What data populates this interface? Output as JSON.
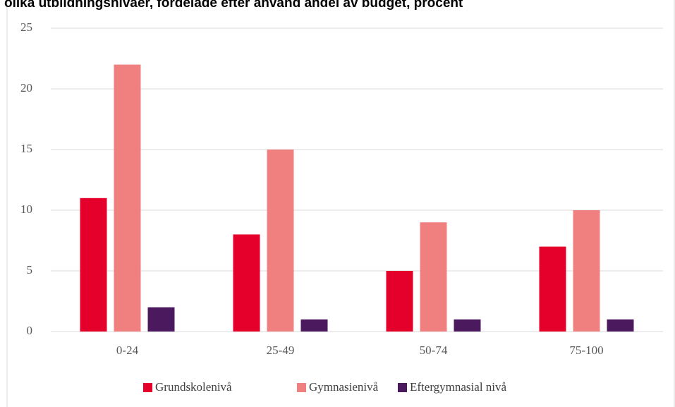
{
  "chart_data": {
    "type": "bar",
    "title": "olika utbildningsnivåer, fördelade efter använd andel av budget, procent",
    "categories": [
      "0-24",
      "25-49",
      "50-74",
      "75-100"
    ],
    "series": [
      {
        "name": "Grundskolenivå",
        "color": "#e4002b",
        "values": [
          11,
          8,
          5,
          7
        ]
      },
      {
        "name": "Gymnasienivå",
        "color": "#f08080",
        "values": [
          22,
          15,
          9,
          10
        ]
      },
      {
        "name": "Eftergymnasial nivå",
        "color": "#4b1a5e",
        "values": [
          2,
          1,
          1,
          1
        ]
      }
    ],
    "ylim": [
      0,
      25
    ],
    "yticks": [
      0,
      5,
      10,
      15,
      20,
      25
    ],
    "grid": true,
    "legend": "bottom"
  }
}
